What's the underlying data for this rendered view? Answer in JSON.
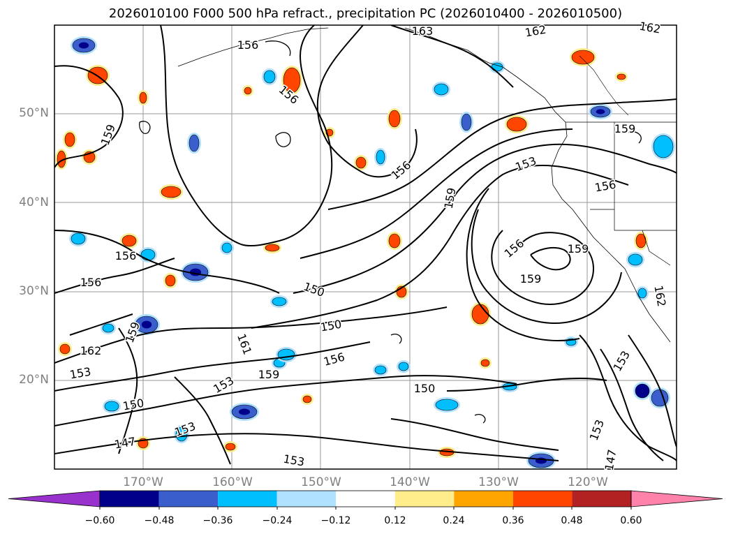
{
  "title": "2026010100 F000 500 hPa refract., precipitation PC (2026010400 - 2026010500)",
  "lat_labels": [
    "50°N",
    "40°N",
    "30°N",
    "20°N"
  ],
  "lon_labels": [
    "170°W",
    "160°W",
    "150°W",
    "140°W",
    "130°W",
    "120°W"
  ],
  "contour_labels": [
    "150",
    "150",
    "153",
    "153",
    "153",
    "153",
    "153",
    "156",
    "156",
    "156",
    "156",
    "156",
    "156",
    "156",
    "156",
    "159",
    "159",
    "159",
    "159",
    "159",
    "159",
    "159",
    "162",
    "162",
    "162",
    "162",
    "163",
    "147",
    "147",
    "150",
    "150",
    "153",
    "153",
    "161"
  ],
  "colorbar": {
    "ticks": [
      "−0.60",
      "−0.48",
      "−0.36",
      "−0.24",
      "−0.12",
      "0.12",
      "0.24",
      "0.36",
      "0.48",
      "0.60"
    ],
    "colors": [
      "#9932CC",
      "#00008B",
      "#3A5FCD",
      "#00BFFF",
      "#B0E2FF",
      "#FFFFFF",
      "#FFEC8B",
      "#FFA500",
      "#FF4500",
      "#B22222",
      "#FF82AB"
    ]
  },
  "fill_colors": {
    "neg_strong": "#00008B",
    "neg_mid": "#3A5FCD",
    "neg_weak": "#00BFFF",
    "neg_faint": "#B0E2FF",
    "pos_faint": "#FFEC8B",
    "pos_weak": "#FFA500",
    "pos_mid": "#FF4500",
    "pos_strong": "#B22222"
  }
}
